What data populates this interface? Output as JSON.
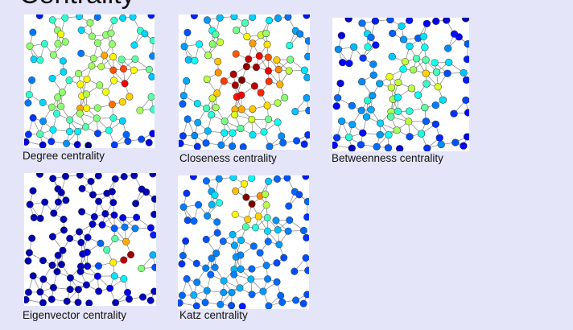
{
  "slide": {
    "title": "Centrality",
    "panels": [
      {
        "caption": "Degree centrality",
        "colormap": "jet",
        "focus": "degree"
      },
      {
        "caption": "Closeness centrality",
        "colormap": "jet",
        "focus": "closeness"
      },
      {
        "caption": "Betweenness centrality",
        "colormap": "jet",
        "focus": "betweenness"
      },
      {
        "caption": "Eigenvector centrality",
        "colormap": "jet",
        "focus": "eigenvector"
      },
      {
        "caption": "Katz centrality",
        "colormap": "jet",
        "focus": "katz"
      }
    ]
  }
}
